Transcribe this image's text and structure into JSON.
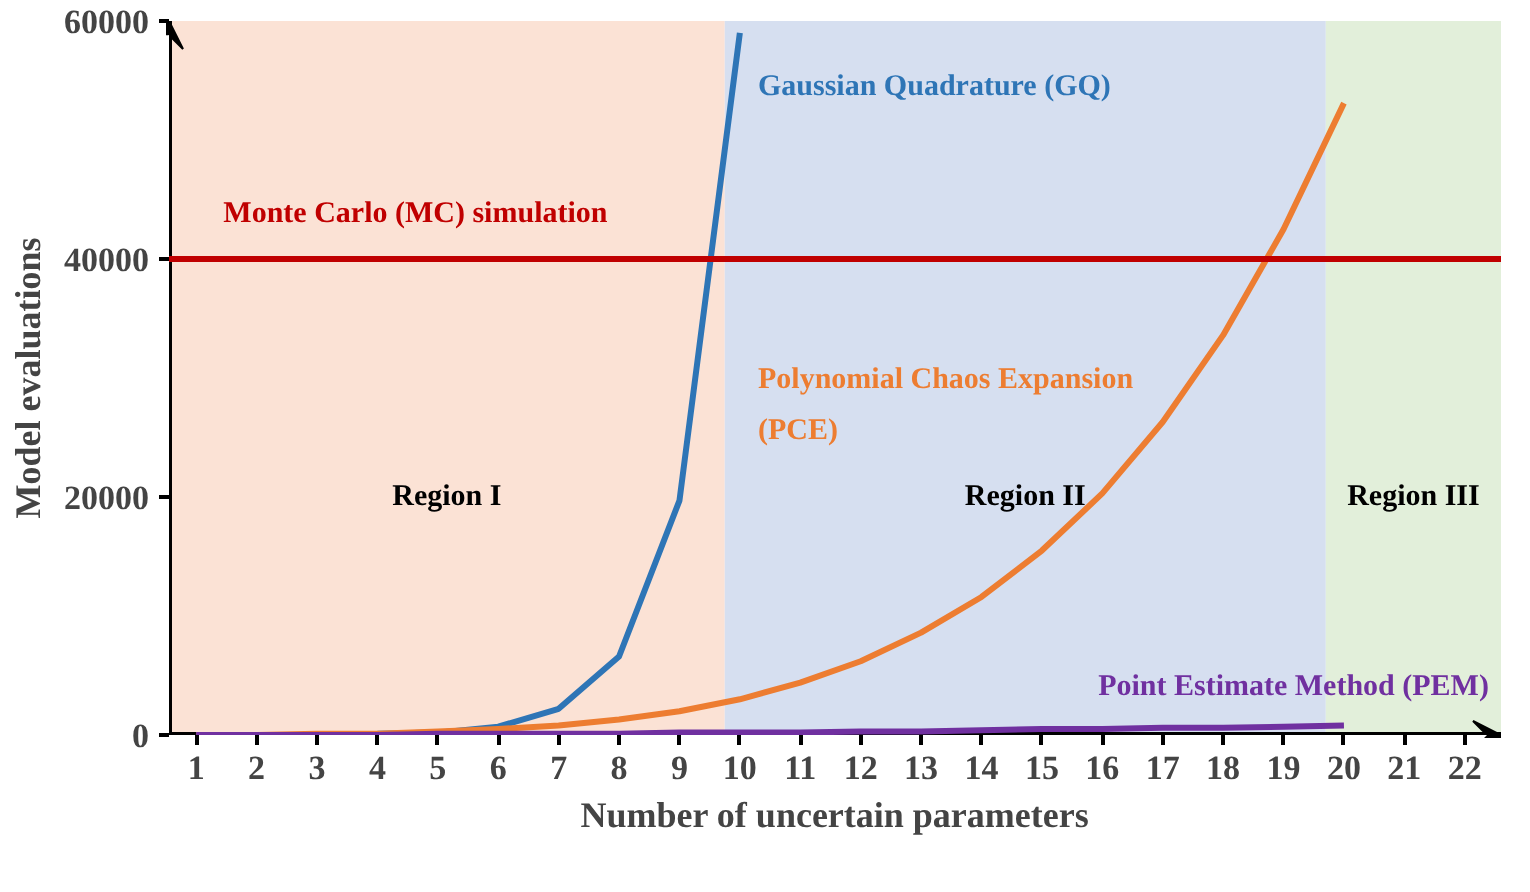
{
  "chart_data": {
    "type": "line",
    "xlabel": "Number of uncertain parameters",
    "ylabel": "Model evaluations",
    "xlim": [
      0.55,
      22.6
    ],
    "ylim": [
      0,
      60000
    ],
    "xticks": [
      1,
      2,
      3,
      4,
      5,
      6,
      7,
      8,
      9,
      10,
      11,
      12,
      13,
      14,
      15,
      16,
      17,
      18,
      19,
      20,
      21,
      22
    ],
    "yticks": [
      0,
      20000,
      40000,
      60000
    ],
    "x": [
      1,
      2,
      3,
      4,
      5,
      6,
      7,
      8,
      9,
      10,
      11,
      12,
      13,
      14,
      15,
      16,
      17,
      18,
      19,
      20
    ],
    "series": [
      {
        "name": "Gaussian Quadrature (GQ)",
        "color": "#2e75b6",
        "x": [
          4,
          5,
          6,
          7,
          8,
          9,
          10
        ],
        "values": [
          100,
          200,
          700,
          2200,
          6600,
          19700,
          59000
        ]
      },
      {
        "name": "Polynomial Chaos Expansion (PCE)",
        "color": "#ed7d31",
        "values": [
          0,
          0,
          100,
          100,
          300,
          500,
          800,
          1300,
          2000,
          3000,
          4400,
          6200,
          8600,
          11600,
          15500,
          20300,
          26300,
          33600,
          42500,
          53100
        ]
      },
      {
        "name": "Point Estimate Method (PEM)",
        "color": "#7030a0",
        "values": [
          0,
          0,
          0,
          0,
          100,
          100,
          100,
          100,
          200,
          200,
          200,
          300,
          300,
          400,
          500,
          500,
          600,
          600,
          700,
          800
        ]
      }
    ],
    "ref_lines": [
      {
        "axis": "y",
        "value": 40000,
        "label": "Monte Carlo (MC) simulation",
        "color": "#c00000"
      }
    ],
    "bands": [
      {
        "axis": "x",
        "from": 0.55,
        "to": 9.75,
        "label": "Region I",
        "color": "#fbe2d5"
      },
      {
        "axis": "x",
        "from": 9.75,
        "to": 19.7,
        "label": "Region II",
        "color": "#d6dff0"
      },
      {
        "axis": "x",
        "from": 19.7,
        "to": 22.6,
        "label": "Region III",
        "color": "#e2efda"
      }
    ],
    "line_style": "solid",
    "marker": "none"
  }
}
